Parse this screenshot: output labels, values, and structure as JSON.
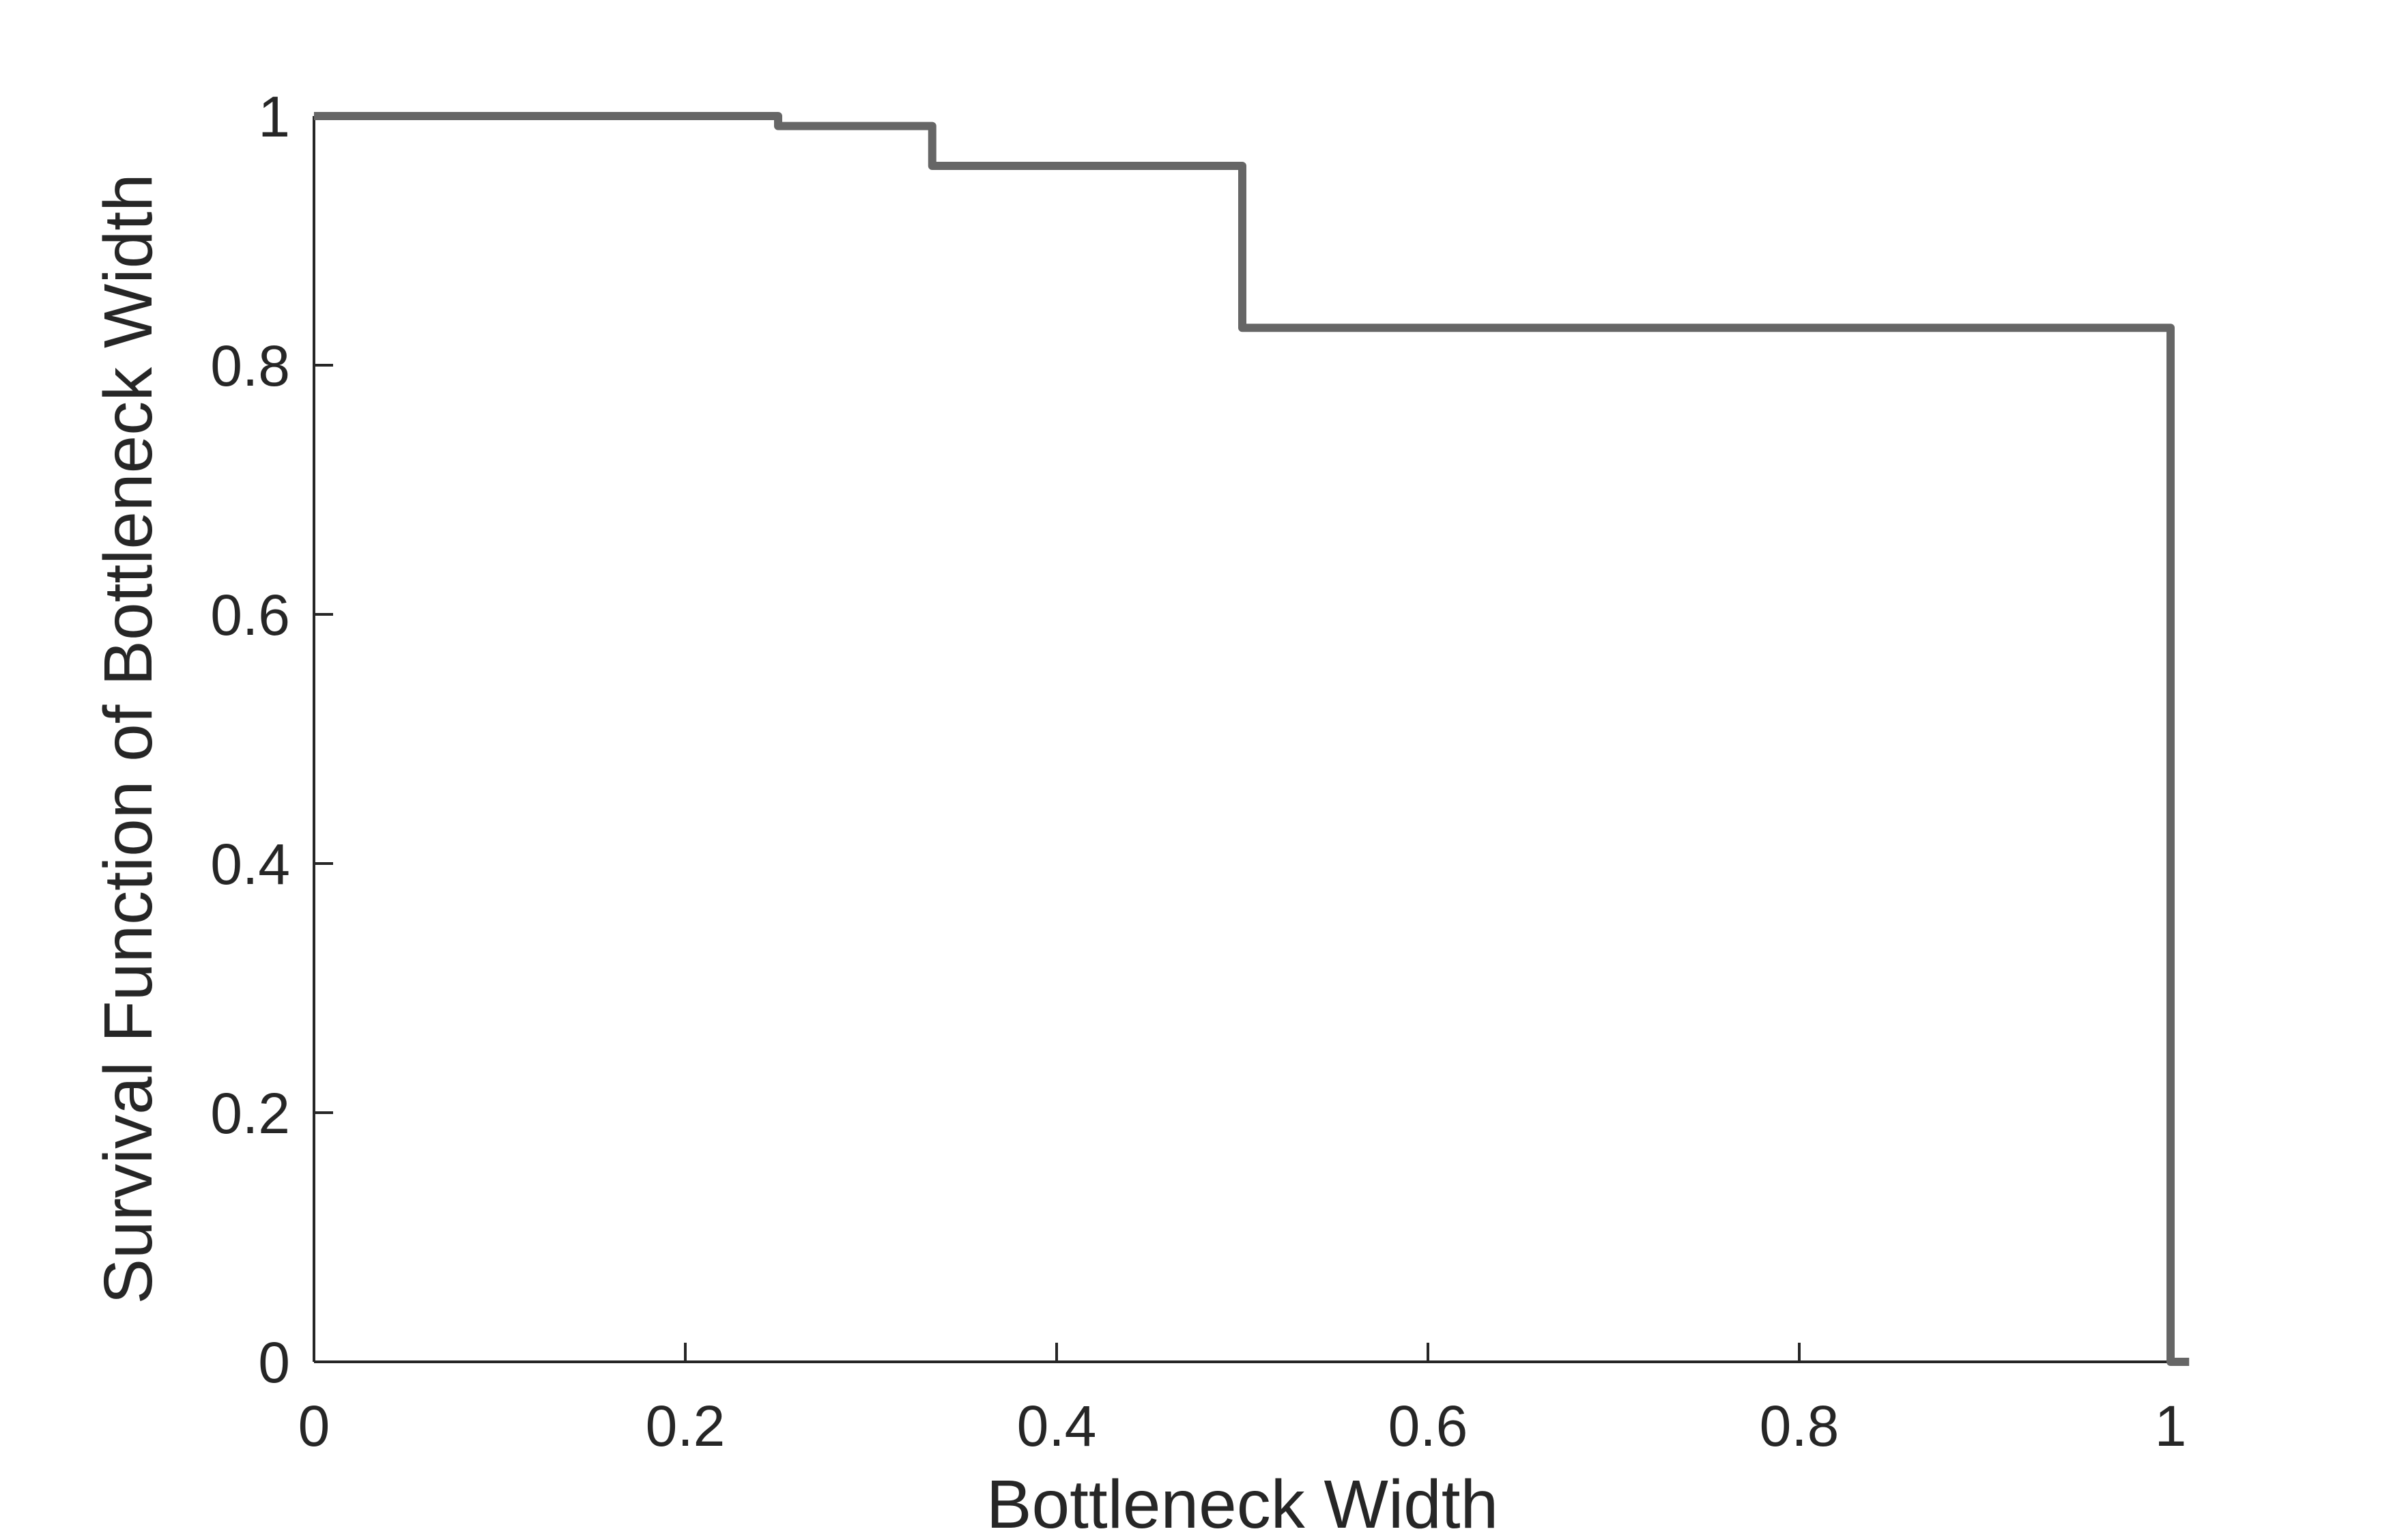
{
  "chart_data": {
    "type": "line",
    "title": "",
    "xlabel": "Bottleneck Width",
    "ylabel": "Survival Function of Bottleneck Width",
    "xlim": [
      0,
      1
    ],
    "ylim": [
      0,
      1
    ],
    "x_ticks": [
      0,
      0.2,
      0.4,
      0.6,
      0.8,
      1
    ],
    "x_tick_labels": [
      "0",
      "0.2",
      "0.4",
      "0.6",
      "0.8",
      "1"
    ],
    "y_ticks": [
      0,
      0.2,
      0.4,
      0.6,
      0.8,
      1
    ],
    "y_tick_labels": [
      "0",
      "0.2",
      "0.4",
      "0.6",
      "0.8",
      "1"
    ],
    "grid": false,
    "legend": "none",
    "line_color": "#666666",
    "axis_color": "#262626",
    "series": [
      {
        "step": "post",
        "x": [
          0,
          0.25,
          0.333,
          0.5,
          1.0,
          1.01
        ],
        "y": [
          1.0,
          0.992,
          0.96,
          0.83,
          0.0,
          0.0
        ]
      }
    ]
  }
}
